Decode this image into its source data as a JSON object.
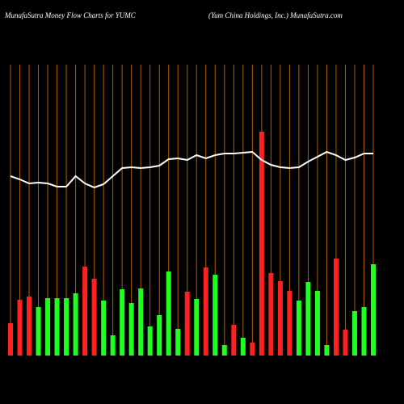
{
  "chart_data": {
    "type": "bar",
    "title": "MunafaSutra  Money Flow  Charts for YUMC",
    "subtitle": "(Yum China  Holdings, Inc.) MunafaSutra.com",
    "categories": [
      null,
      null,
      null,
      null,
      null,
      null,
      null,
      null,
      null,
      null,
      null,
      null,
      null,
      null,
      null,
      null,
      null,
      null,
      null,
      null,
      null,
      null,
      null,
      null,
      null,
      null,
      null,
      null,
      null,
      null,
      null,
      null,
      null,
      null,
      null,
      null,
      null,
      null,
      null,
      null
    ],
    "ylim": [
      0,
      300
    ],
    "bar_colors": [
      "#ff2020",
      "#ff2020",
      "#ff2020",
      "#20ff20",
      "#20ff20",
      "#20ff20",
      "#20ff20",
      "#20ff20",
      "#ff2020",
      "#ff2020",
      "#20ff20",
      "#20ff20",
      "#20ff20",
      "#20ff20",
      "#20ff20",
      "#20ff20",
      "#20ff20",
      "#20ff20",
      "#20ff20",
      "#ff2020",
      "#20ff20",
      "#ff2020",
      "#20ff20",
      "#20ff20",
      "#ff2020",
      "#20ff20",
      "#ff2020",
      "#ff2020",
      "#ff2020",
      "#ff2020",
      "#ff2020",
      "#20ff20",
      "#20ff20",
      "#20ff20",
      "#20ff20",
      "#ff2020",
      "#ff2020",
      "#20ff20",
      "#20ff20",
      "#20ff20"
    ],
    "values": [
      40,
      69,
      73,
      60,
      71,
      71,
      71,
      77,
      110,
      95,
      68,
      25,
      82,
      65,
      83,
      36,
      50,
      104,
      33,
      79,
      70,
      109,
      100,
      13,
      38,
      22,
      16,
      277,
      102,
      92,
      80,
      68,
      91,
      80,
      13,
      120,
      32,
      55,
      60,
      113
    ],
    "line": {
      "color": "#ffffff",
      "values": [
        222,
        218,
        213,
        214,
        213,
        209,
        209,
        222,
        213,
        208,
        212,
        222,
        232,
        233,
        232,
        233,
        235,
        243,
        244,
        242,
        248,
        244,
        248,
        250,
        250,
        251,
        252,
        242,
        236,
        233,
        232,
        233,
        240,
        246,
        252,
        248,
        242,
        245,
        250,
        250
      ]
    },
    "gridline_color": "#b06000"
  }
}
